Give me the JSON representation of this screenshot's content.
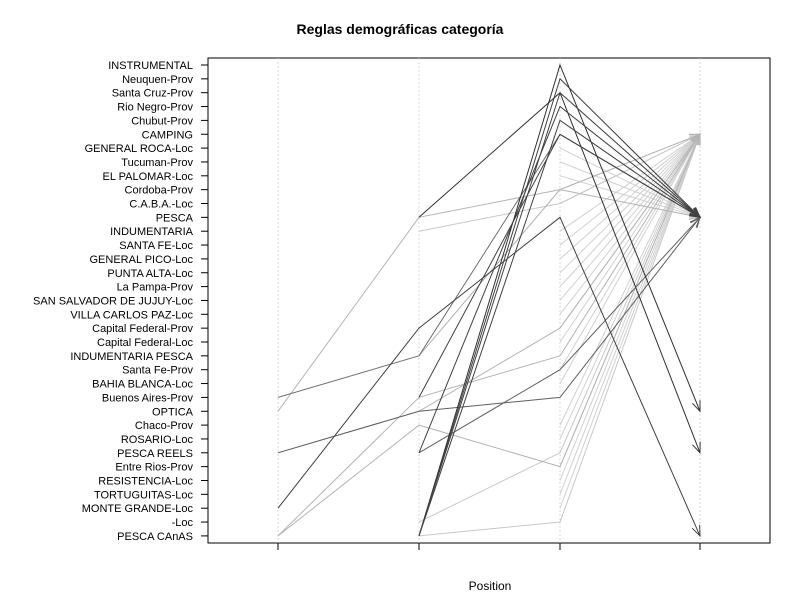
{
  "chart_data": {
    "type": "line",
    "title": "Reglas demográficas categoría",
    "xlabel": "Position",
    "ylabel": "",
    "positions": [
      1,
      2,
      3,
      4
    ],
    "items": [
      "INSTRUMENTAL",
      "Neuquen-Prov",
      "Santa Cruz-Prov",
      "Rio Negro-Prov",
      "Chubut-Prov",
      "CAMPING",
      "GENERAL ROCA-Loc",
      "Tucuman-Prov",
      "EL PALOMAR-Loc",
      "Cordoba-Prov",
      "C.A.B.A.-Loc",
      "PESCA",
      "INDUMENTARIA",
      "SANTA FE-Loc",
      "GENERAL PICO-Loc",
      "PUNTA ALTA-Loc",
      "La Pampa-Prov",
      "SAN SALVADOR DE JUJUY-Loc",
      "VILLA CARLOS PAZ-Loc",
      "Capital Federal-Prov",
      "Capital Federal-Loc",
      "INDUMENTARIA PESCA",
      "Santa Fe-Prov",
      "BAHIA BLANCA-Loc",
      "Buenos Aires-Prov",
      "OPTICA",
      "Chaco-Prov",
      "ROSARIO-Loc",
      "PESCA REELS",
      "Entre Rios-Prov",
      "RESISTENCIA-Loc",
      "TORTUGUITAS-Loc",
      "MONTE GRANDE-Loc",
      "-Loc",
      "PESCA CAnAS"
    ],
    "rules": [
      {
        "path": [
          null,
          null,
          "Neuquen-Prov",
          "PESCA"
        ],
        "shade": "#d0d0d0"
      },
      {
        "path": [
          null,
          null,
          "Santa Cruz-Prov",
          "PESCA"
        ],
        "shade": "#d0d0d0"
      },
      {
        "path": [
          null,
          null,
          "Rio Negro-Prov",
          "PESCA"
        ],
        "shade": "#d0d0d0"
      },
      {
        "path": [
          null,
          null,
          "Chubut-Prov",
          "PESCA"
        ],
        "shade": "#d0d0d0"
      },
      {
        "path": [
          null,
          null,
          "GENERAL ROCA-Loc",
          "PESCA"
        ],
        "shade": "#d0d0d0"
      },
      {
        "path": [
          null,
          null,
          "Tucuman-Prov",
          "PESCA"
        ],
        "shade": "#d0d0d0"
      },
      {
        "path": [
          null,
          null,
          "EL PALOMAR-Loc",
          "PESCA"
        ],
        "shade": "#d0d0d0"
      },
      {
        "path": [
          null,
          null,
          "C.A.B.A.-Loc",
          "CAMPING"
        ],
        "shade": "#d0d0d0"
      },
      {
        "path": [
          null,
          null,
          "INDUMENTARIA",
          "CAMPING"
        ],
        "shade": "#d0d0d0"
      },
      {
        "path": [
          null,
          null,
          "SANTA FE-Loc",
          "CAMPING"
        ],
        "shade": "#d0d0d0"
      },
      {
        "path": [
          null,
          null,
          "GENERAL PICO-Loc",
          "CAMPING"
        ],
        "shade": "#d0d0d0"
      },
      {
        "path": [
          null,
          null,
          "PUNTA ALTA-Loc",
          "CAMPING"
        ],
        "shade": "#d0d0d0"
      },
      {
        "path": [
          null,
          null,
          "La Pampa-Prov",
          "CAMPING"
        ],
        "shade": "#d0d0d0"
      },
      {
        "path": [
          null,
          null,
          "SAN SALVADOR DE JUJUY-Loc",
          "CAMPING"
        ],
        "shade": "#d0d0d0"
      },
      {
        "path": [
          null,
          null,
          "VILLA CARLOS PAZ-Loc",
          "CAMPING"
        ],
        "shade": "#d0d0d0"
      },
      {
        "path": [
          null,
          null,
          "Capital Federal-Prov",
          "CAMPING"
        ],
        "shade": "#d0d0d0"
      },
      {
        "path": [
          null,
          null,
          "Capital Federal-Loc",
          "CAMPING"
        ],
        "shade": "#d0d0d0"
      },
      {
        "path": [
          null,
          null,
          "Santa Fe-Prov",
          "CAMPING"
        ],
        "shade": "#d0d0d0"
      },
      {
        "path": [
          null,
          null,
          "BAHIA BLANCA-Loc",
          "CAMPING"
        ],
        "shade": "#d0d0d0"
      },
      {
        "path": [
          null,
          null,
          "Chaco-Prov",
          "CAMPING"
        ],
        "shade": "#d0d0d0"
      },
      {
        "path": [
          null,
          null,
          "ROSARIO-Loc",
          "CAMPING"
        ],
        "shade": "#d0d0d0"
      },
      {
        "path": [
          null,
          null,
          "Entre Rios-Prov",
          "CAMPING"
        ],
        "shade": "#d0d0d0"
      },
      {
        "path": [
          null,
          null,
          "RESISTENCIA-Loc",
          "CAMPING"
        ],
        "shade": "#d0d0d0"
      },
      {
        "path": [
          null,
          null,
          "TORTUGUITAS-Loc",
          "CAMPING"
        ],
        "shade": "#d0d0d0"
      },
      {
        "path": [
          null,
          null,
          "MONTE GRANDE-Loc",
          "CAMPING"
        ],
        "shade": "#d0d0d0"
      },
      {
        "path": [
          null,
          "-Loc",
          "PESCA REELS",
          "CAMPING"
        ],
        "shade": "#c8c8c8"
      },
      {
        "path": [
          null,
          "PESCA CAnAS",
          "-Loc",
          "CAMPING"
        ],
        "shade": "#c8c8c8"
      },
      {
        "path": [
          null,
          "INDUMENTARIA",
          "C.A.B.A.-Loc",
          "CAMPING"
        ],
        "shade": "#c8c8c8"
      },
      {
        "path": [
          null,
          "INDUMENTARIA PESCA",
          "Cordoba-Prov",
          "CAMPING"
        ],
        "shade": "#b0b0b0"
      },
      {
        "path": [
          "OPTICA",
          "PESCA",
          "Cordoba-Prov",
          "PESCA"
        ],
        "shade": "#b4b4b4"
      },
      {
        "path": [
          "PESCA CAnAS",
          "Buenos Aires-Prov",
          "INDUMENTARIA PESCA",
          "CAMPING"
        ],
        "shade": "#b4b4b4"
      },
      {
        "path": [
          "PESCA REELS",
          "OPTICA",
          "Capital Federal-Prov",
          "CAMPING"
        ],
        "shade": "#b4b4b4"
      },
      {
        "path": [
          "PESCA CAnAS",
          "Chaco-Prov",
          "Entre Rios-Prov",
          "CAMPING"
        ],
        "shade": "#b4b4b4"
      },
      {
        "path": [
          "Buenos Aires-Prov",
          "INDUMENTARIA PESCA",
          "CAMPING",
          "PESCA"
        ],
        "shade": "#707070"
      },
      {
        "path": [
          "PESCA REELS",
          "OPTICA",
          "Buenos Aires-Prov",
          "PESCA"
        ],
        "shade": "#606060"
      },
      {
        "path": [
          null,
          "PESCA REELS",
          "Santa Fe-Prov",
          "PESCA"
        ],
        "shade": "#606060"
      },
      {
        "path": [
          null,
          "PESCA",
          "Santa Cruz-Prov",
          "PESCA REELS"
        ],
        "shade": "#303030"
      },
      {
        "path": [
          null,
          "PESCA CAnAS",
          "INSTRUMENTAL",
          "OPTICA"
        ],
        "shade": "#303030"
      },
      {
        "path": [
          null,
          "PESCA CAnAS",
          "Santa Cruz-Prov",
          "PESCA"
        ],
        "shade": "#404040"
      },
      {
        "path": [
          null,
          "PESCA REELS",
          "Rio Negro-Prov",
          "PESCA"
        ],
        "shade": "#404040"
      },
      {
        "path": [
          null,
          "PESCA CAnAS",
          "Chubut-Prov",
          "PESCA"
        ],
        "shade": "#404040"
      },
      {
        "path": [
          null,
          "Buenos Aires-Prov",
          "CAMPING",
          "PESCA"
        ],
        "shade": "#404040"
      },
      {
        "path": [
          null,
          "PESCA CAnAS",
          "Neuquen-Prov",
          "PESCA"
        ],
        "shade": "#404040"
      },
      {
        "path": [
          "MONTE GRANDE-Loc",
          "Capital Federal-Prov",
          "PESCA",
          "PESCA CAnAS"
        ],
        "shade": "#404040"
      }
    ],
    "arrow_targets": [
      "CAMPING",
      "PESCA",
      "OPTICA",
      "PESCA REELS",
      "PESCA CAnAS"
    ],
    "grid": true,
    "legend": "none"
  }
}
